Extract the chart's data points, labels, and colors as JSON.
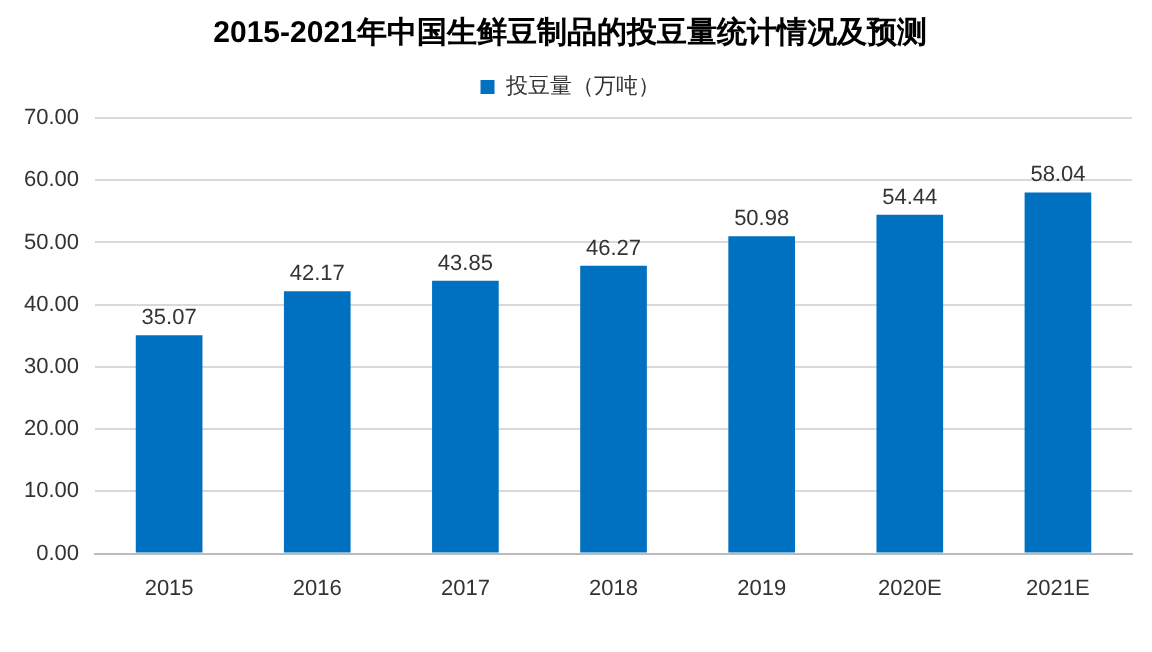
{
  "chart_data": {
    "type": "bar",
    "title": "2015-2021年中国生鲜豆制品的投豆量统计情况及预测",
    "categories": [
      "2015",
      "2016",
      "2017",
      "2018",
      "2019",
      "2020E",
      "2021E"
    ],
    "series": [
      {
        "name": "投豆量（万吨）",
        "color": "#0070c0",
        "values": [
          35.07,
          42.17,
          43.85,
          46.27,
          50.98,
          54.44,
          58.04
        ]
      }
    ],
    "ylim": [
      0,
      70
    ],
    "yticks": [
      {
        "value": 0,
        "label": "0.00"
      },
      {
        "value": 10,
        "label": "10.00"
      },
      {
        "value": 20,
        "label": "20.00"
      },
      {
        "value": 30,
        "label": "30.00"
      },
      {
        "value": 40,
        "label": "40.00"
      },
      {
        "value": 50,
        "label": "50.00"
      },
      {
        "value": 60,
        "label": "60.00"
      },
      {
        "value": 70,
        "label": "70.00"
      }
    ],
    "grid": "y",
    "legend": "top",
    "data_labels": true
  }
}
